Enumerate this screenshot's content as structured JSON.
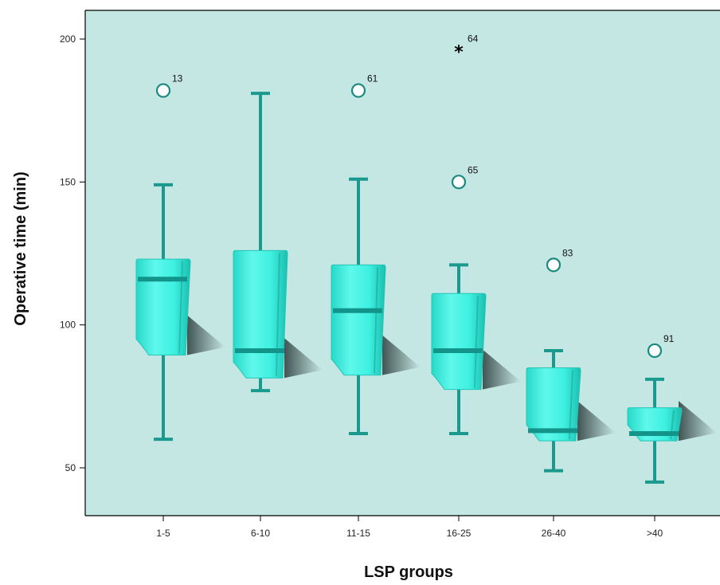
{
  "chart_data": {
    "type": "box",
    "xlabel": "LSP groups",
    "ylabel": "Operative time (min)",
    "ylim": [
      33,
      210
    ],
    "yticks": [
      50,
      100,
      150,
      200
    ],
    "categories": [
      "1-5",
      "6-10",
      "11-15",
      "16-25",
      "26-40",
      ">40"
    ],
    "boxes": [
      {
        "category": "1-5",
        "whisker_low": 60,
        "q1": 90,
        "median": 116,
        "q3": 123,
        "whisker_high": 149
      },
      {
        "category": "6-10",
        "whisker_low": 77,
        "q1": 82,
        "median": 91,
        "q3": 126,
        "whisker_high": 181
      },
      {
        "category": "11-15",
        "whisker_low": 62,
        "q1": 83,
        "median": 105,
        "q3": 121,
        "whisker_high": 151
      },
      {
        "category": "16-25",
        "whisker_low": 62,
        "q1": 78,
        "median": 91,
        "q3": 111,
        "whisker_high": 121
      },
      {
        "category": "26-40",
        "whisker_low": 49,
        "q1": 60,
        "median": 63,
        "q3": 85,
        "whisker_high": 91
      },
      {
        "category": ">40",
        "whisker_low": 45,
        "q1": 60,
        "median": 62,
        "q3": 71,
        "whisker_high": 81
      }
    ],
    "outliers": [
      {
        "category": "1-5",
        "value": 182,
        "label": "13",
        "marker": "circle"
      },
      {
        "category": "11-15",
        "value": 182,
        "label": "61",
        "marker": "circle"
      },
      {
        "category": "16-25",
        "value": 196,
        "label": "64",
        "marker": "star"
      },
      {
        "category": "16-25",
        "value": 150,
        "label": "65",
        "marker": "circle"
      },
      {
        "category": "26-40",
        "value": 121,
        "label": "83",
        "marker": "circle"
      },
      {
        "category": ">40",
        "value": 91,
        "label": "91",
        "marker": "circle"
      }
    ],
    "colors": {
      "plot_background": "#c5e7e3",
      "box_fill": "#3ef2e2",
      "box_fill_light": "#7ffaf0",
      "box_fill_dark": "#1fc9b9",
      "median_line": "#12948a",
      "whisker": "#1a9a8e",
      "outlier_stroke": "#1a8a80",
      "star": "#000000"
    },
    "grid": false,
    "legend": "none"
  }
}
